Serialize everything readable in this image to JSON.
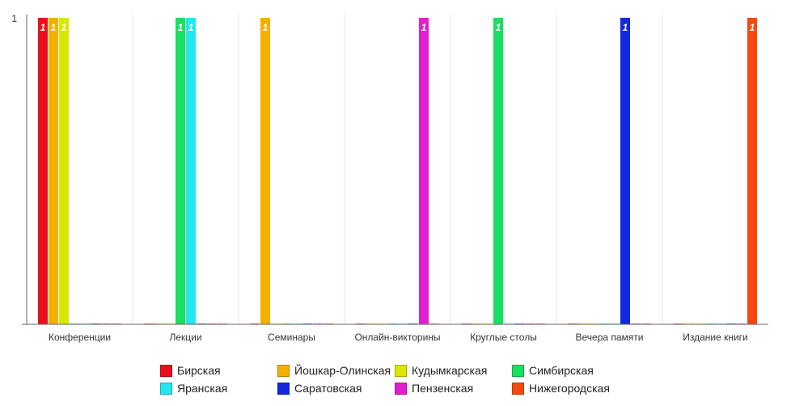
{
  "chart_data": {
    "type": "bar",
    "title": "",
    "xlabel": "",
    "ylabel": "",
    "ylim": [
      0,
      1
    ],
    "y_ticks": [
      "1"
    ],
    "grid": "vertical-separators",
    "legend_position": "bottom",
    "categories": [
      "Конференции",
      "Лекции",
      "Семинары",
      "Онлайн-викторины",
      "Круглые столы",
      "Вечера памяти",
      "Издание книги"
    ],
    "series": [
      {
        "name": "Бирская",
        "color": "#e8101c",
        "values": [
          1,
          0,
          0,
          0,
          0,
          0,
          0
        ]
      },
      {
        "name": "Йошкар-Олинская",
        "color": "#f4b000",
        "values": [
          1,
          0,
          1,
          0,
          0,
          0,
          0
        ]
      },
      {
        "name": "Кудымкарская",
        "color": "#d8e800",
        "values": [
          1,
          0,
          0,
          0,
          0,
          0,
          0
        ]
      },
      {
        "name": "Симбирская",
        "color": "#18e060",
        "values": [
          0,
          1,
          0,
          0,
          1,
          0,
          0
        ]
      },
      {
        "name": "Яранская",
        "color": "#22e8ee",
        "values": [
          0,
          1,
          0,
          0,
          0,
          0,
          0
        ]
      },
      {
        "name": "Саратовская",
        "color": "#1428e0",
        "values": [
          0,
          0,
          0,
          0,
          0,
          1,
          0
        ]
      },
      {
        "name": "Пензенская",
        "color": "#e020d0",
        "values": [
          0,
          0,
          0,
          1,
          0,
          0,
          0
        ]
      },
      {
        "name": "Нижегородская",
        "color": "#f84810",
        "values": [
          0,
          0,
          0,
          0,
          0,
          0,
          1
        ]
      }
    ]
  }
}
